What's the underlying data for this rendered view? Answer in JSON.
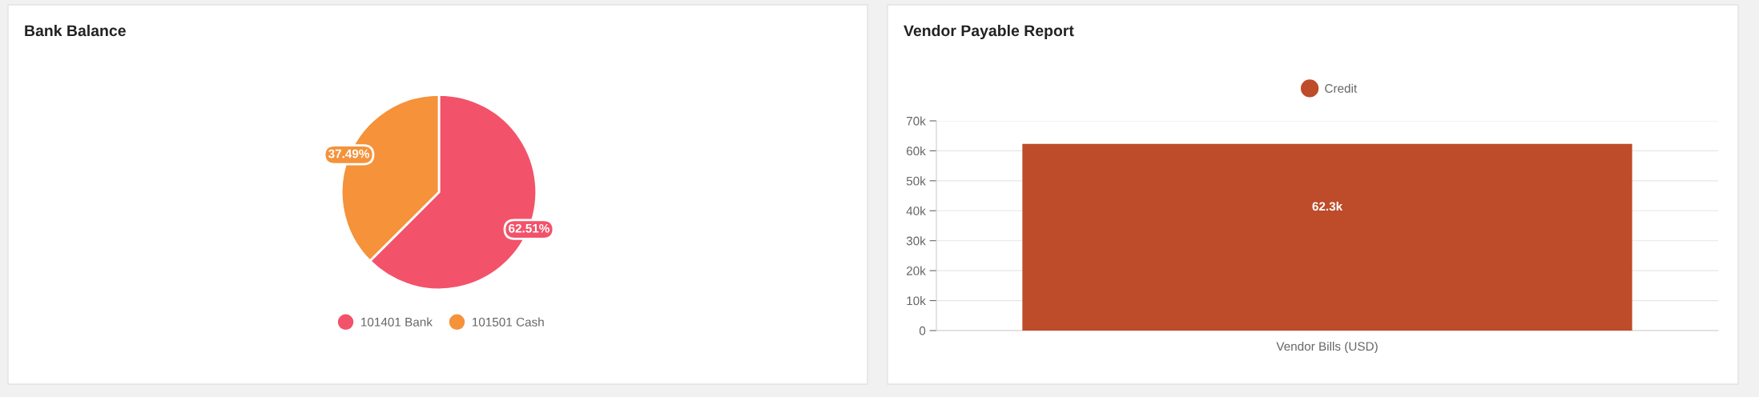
{
  "chart_data": [
    {
      "type": "pie",
      "title": "Bank Balance",
      "categories": [
        "101401 Bank",
        "101501 Cash"
      ],
      "values": [
        62.51,
        37.49
      ],
      "colors": [
        "#f2536a",
        "#f5923a"
      ],
      "value_labels": [
        "62.51%",
        "37.49%"
      ],
      "legend": "bottom"
    },
    {
      "type": "bar",
      "title": "Vendor Payable Report",
      "categories": [
        "Vendor Bills (USD)"
      ],
      "series": [
        {
          "name": "Credit",
          "color": "#be4b2a",
          "values": [
            62300
          ],
          "value_labels": [
            "62.3k"
          ]
        }
      ],
      "ylim": [
        0,
        70000
      ],
      "yticks": [
        {
          "value": 0,
          "label": "0"
        },
        {
          "value": 10000,
          "label": "10k"
        },
        {
          "value": 20000,
          "label": "20k"
        },
        {
          "value": 30000,
          "label": "30k"
        },
        {
          "value": 40000,
          "label": "40k"
        },
        {
          "value": 50000,
          "label": "50k"
        },
        {
          "value": 60000,
          "label": "60k"
        },
        {
          "value": 70000,
          "label": "70k"
        }
      ],
      "grid": "y",
      "legend": "top"
    }
  ]
}
